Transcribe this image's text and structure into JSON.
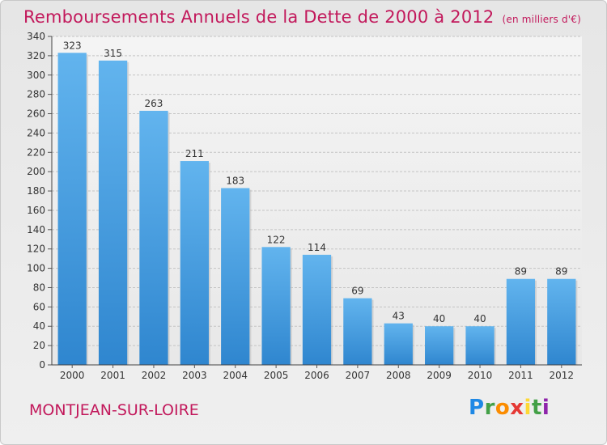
{
  "title": "Remboursements Annuels de la Dette de 2000 à 2012",
  "unit": "(en milliers d'€)",
  "commune": "MONTJEAN-SUR-LOIRE",
  "logo": {
    "letters": [
      "P",
      "r",
      "o",
      "x",
      "i",
      "t",
      "i"
    ]
  },
  "colors": {
    "bar": "#3a93d8",
    "bar_light": "#5fb3ec",
    "title": "#c2185b"
  },
  "chart_data": {
    "type": "bar",
    "title": "Remboursements Annuels de la Dette de 2000 à 2012",
    "xlabel": "",
    "ylabel": "",
    "categories": [
      "2000",
      "2001",
      "2002",
      "2003",
      "2004",
      "2005",
      "2006",
      "2007",
      "2008",
      "2009",
      "2010",
      "2011",
      "2012"
    ],
    "values": [
      323,
      315,
      263,
      211,
      183,
      122,
      114,
      69,
      43,
      40,
      40,
      89,
      89
    ],
    "ylim": [
      0,
      340
    ],
    "yticks": [
      0,
      20,
      40,
      60,
      80,
      100,
      120,
      140,
      160,
      180,
      200,
      220,
      240,
      260,
      280,
      300,
      320,
      340
    ],
    "grid": true
  }
}
